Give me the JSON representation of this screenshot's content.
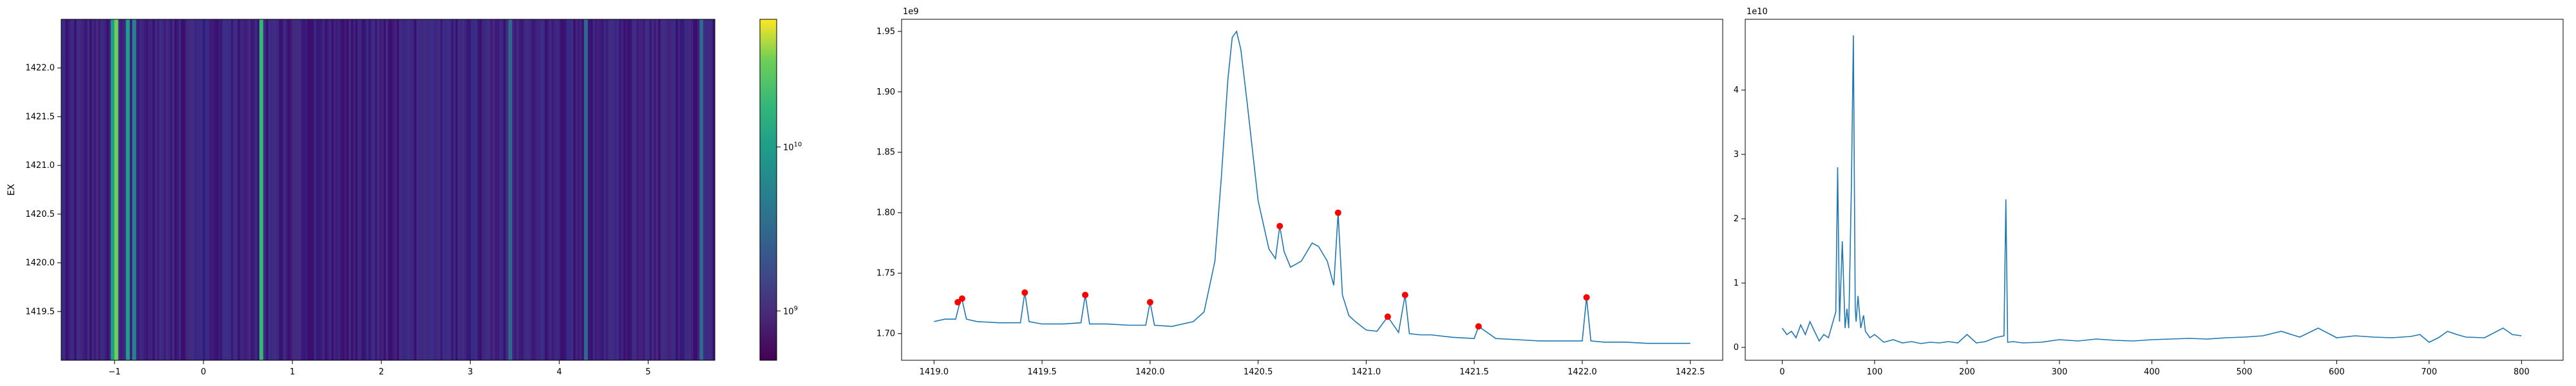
{
  "chart_data": [
    {
      "type": "heatmap",
      "xlabel": "",
      "ylabel": "EX",
      "xlim": [
        -1.6,
        5.75
      ],
      "ylim": [
        1419.0,
        1422.5
      ],
      "xticks": [
        -1,
        0,
        1,
        2,
        3,
        4,
        5
      ],
      "yticks": [
        1419.5,
        1420.0,
        1420.5,
        1421.0,
        1421.5,
        1422.0
      ],
      "xtick_labels": [
        "−1",
        "0",
        "1",
        "2",
        "3",
        "4",
        "5"
      ],
      "ytick_labels": [
        "1419.5",
        "1420.0",
        "1420.5",
        "1421.0",
        "1421.5",
        "1422.0"
      ],
      "colormap": "viridis",
      "colorbar": {
        "scale": "log",
        "range": [
          500000000,
          60000000000
        ],
        "ticks": [
          {
            "value": 1000000000,
            "base": "10",
            "exp": "9"
          },
          {
            "value": 10000000000,
            "base": "10",
            "exp": "10"
          }
        ]
      },
      "bright_columns": [
        {
          "x": -1.02,
          "level": 0.55
        },
        {
          "x": -0.98,
          "level": 0.75
        },
        {
          "x": -0.85,
          "level": 0.5
        },
        {
          "x": -0.78,
          "level": 0.45
        },
        {
          "x": 0.65,
          "level": 0.7
        },
        {
          "x": 3.45,
          "level": 0.35
        },
        {
          "x": 4.3,
          "level": 0.35
        },
        {
          "x": 5.6,
          "level": 0.3
        }
      ]
    },
    {
      "type": "line",
      "xlim": [
        1418.85,
        1422.65
      ],
      "ylim": [
        1678000000,
        1960000000
      ],
      "xticks": [
        1419.0,
        1419.5,
        1420.0,
        1420.5,
        1421.0,
        1421.5,
        1422.0,
        1422.5
      ],
      "yticks": [
        1700000000,
        1750000000,
        1800000000,
        1850000000,
        1900000000,
        1950000000
      ],
      "xtick_labels": [
        "1419.0",
        "1419.5",
        "1420.0",
        "1420.5",
        "1421.0",
        "1421.5",
        "1422.0",
        "1422.5"
      ],
      "ytick_labels": [
        "1.70",
        "1.75",
        "1.80",
        "1.85",
        "1.90",
        "1.95"
      ],
      "offset_label": "1e9",
      "line_color": "#1f77b4",
      "x": [
        1419.0,
        1419.05,
        1419.1,
        1419.12,
        1419.13,
        1419.15,
        1419.2,
        1419.3,
        1419.4,
        1419.42,
        1419.44,
        1419.5,
        1419.6,
        1419.68,
        1419.7,
        1419.72,
        1419.8,
        1419.9,
        1419.98,
        1420.0,
        1420.02,
        1420.1,
        1420.2,
        1420.25,
        1420.3,
        1420.33,
        1420.36,
        1420.38,
        1420.4,
        1420.42,
        1420.45,
        1420.5,
        1420.55,
        1420.58,
        1420.6,
        1420.62,
        1420.65,
        1420.7,
        1420.75,
        1420.78,
        1420.82,
        1420.85,
        1420.87,
        1420.89,
        1420.92,
        1420.95,
        1421.0,
        1421.05,
        1421.1,
        1421.15,
        1421.18,
        1421.2,
        1421.25,
        1421.3,
        1421.4,
        1421.5,
        1421.52,
        1421.6,
        1421.7,
        1421.8,
        1421.9,
        1422.0,
        1422.02,
        1422.04,
        1422.1,
        1422.2,
        1422.3,
        1422.4,
        1422.5
      ],
      "y": [
        1710000000,
        1712000000,
        1712000000,
        1726000000,
        1728000000,
        1712000000,
        1710000000,
        1709000000,
        1709000000,
        1734000000,
        1710000000,
        1708000000,
        1708000000,
        1709000000,
        1732000000,
        1708000000,
        1708000000,
        1707000000,
        1707000000,
        1726000000,
        1707000000,
        1706000000,
        1710000000,
        1718000000,
        1760000000,
        1830000000,
        1910000000,
        1945000000,
        1950000000,
        1935000000,
        1890000000,
        1810000000,
        1770000000,
        1762000000,
        1789000000,
        1768000000,
        1755000000,
        1760000000,
        1775000000,
        1772000000,
        1760000000,
        1740000000,
        1800000000,
        1732000000,
        1715000000,
        1710000000,
        1703000000,
        1702000000,
        1714000000,
        1701000000,
        1732000000,
        1700000000,
        1699000000,
        1699000000,
        1697000000,
        1696000000,
        1706000000,
        1696000000,
        1695000000,
        1694000000,
        1694000000,
        1694000000,
        1730000000,
        1694000000,
        1693000000,
        1693000000,
        1692000000,
        1692000000,
        1692000000
      ],
      "peaks": {
        "color": "#ff0000",
        "x": [
          1419.11,
          1419.13,
          1419.42,
          1419.7,
          1420.0,
          1420.6,
          1420.87,
          1421.1,
          1421.18,
          1421.52,
          1422.02
        ],
        "y": [
          1726000000,
          1729000000,
          1734000000,
          1732000000,
          1726000000,
          1789000000,
          1800000000,
          1714000000,
          1732000000,
          1706000000,
          1730000000
        ]
      }
    },
    {
      "type": "line",
      "xlim": [
        -40,
        845
      ],
      "ylim": [
        -2000000000,
        51000000000
      ],
      "xticks": [
        0,
        100,
        200,
        300,
        400,
        500,
        600,
        700,
        800
      ],
      "yticks": [
        0,
        10000000000,
        20000000000,
        30000000000,
        40000000000
      ],
      "xtick_labels": [
        "0",
        "100",
        "200",
        "300",
        "400",
        "500",
        "600",
        "700",
        "800"
      ],
      "ytick_labels": [
        "0",
        "1",
        "2",
        "3",
        "4"
      ],
      "offset_label": "1e10",
      "line_color": "#1f77b4",
      "x": [
        0,
        5,
        10,
        15,
        20,
        25,
        30,
        35,
        40,
        45,
        50,
        55,
        58,
        60,
        62,
        65,
        68,
        70,
        72,
        75,
        77,
        79,
        80,
        82,
        85,
        88,
        90,
        95,
        100,
        110,
        120,
        130,
        140,
        150,
        160,
        170,
        180,
        190,
        200,
        210,
        220,
        230,
        240,
        242,
        244,
        250,
        260,
        280,
        300,
        320,
        340,
        360,
        380,
        400,
        420,
        440,
        460,
        480,
        500,
        520,
        540,
        560,
        580,
        600,
        620,
        640,
        660,
        680,
        690,
        700,
        710,
        720,
        730,
        740,
        760,
        780,
        790,
        800
      ],
      "y": [
        3000000000,
        2000000000,
        2500000000,
        1500000000,
        3500000000,
        2000000000,
        4000000000,
        2500000000,
        1000000000,
        2000000000,
        1500000000,
        4000000000,
        5500000000,
        28000000000,
        4000000000,
        16500000000,
        3000000000,
        6000000000,
        3000000000,
        26000000000,
        48500000000,
        6000000000,
        4000000000,
        8000000000,
        3000000000,
        5000000000,
        2500000000,
        1500000000,
        2000000000,
        800000000,
        1200000000,
        700000000,
        900000000,
        600000000,
        800000000,
        700000000,
        900000000,
        700000000,
        2000000000,
        700000000,
        900000000,
        1500000000,
        1800000000,
        23000000000,
        800000000,
        900000000,
        700000000,
        800000000,
        1200000000,
        1000000000,
        1300000000,
        1100000000,
        1000000000,
        1200000000,
        1300000000,
        1400000000,
        1300000000,
        1500000000,
        1600000000,
        1800000000,
        2500000000,
        1600000000,
        3000000000,
        1500000000,
        1800000000,
        1600000000,
        1500000000,
        1700000000,
        2000000000,
        800000000,
        1500000000,
        2500000000,
        2000000000,
        1600000000,
        1500000000,
        3000000000,
        2000000000,
        1800000000
      ]
    }
  ]
}
